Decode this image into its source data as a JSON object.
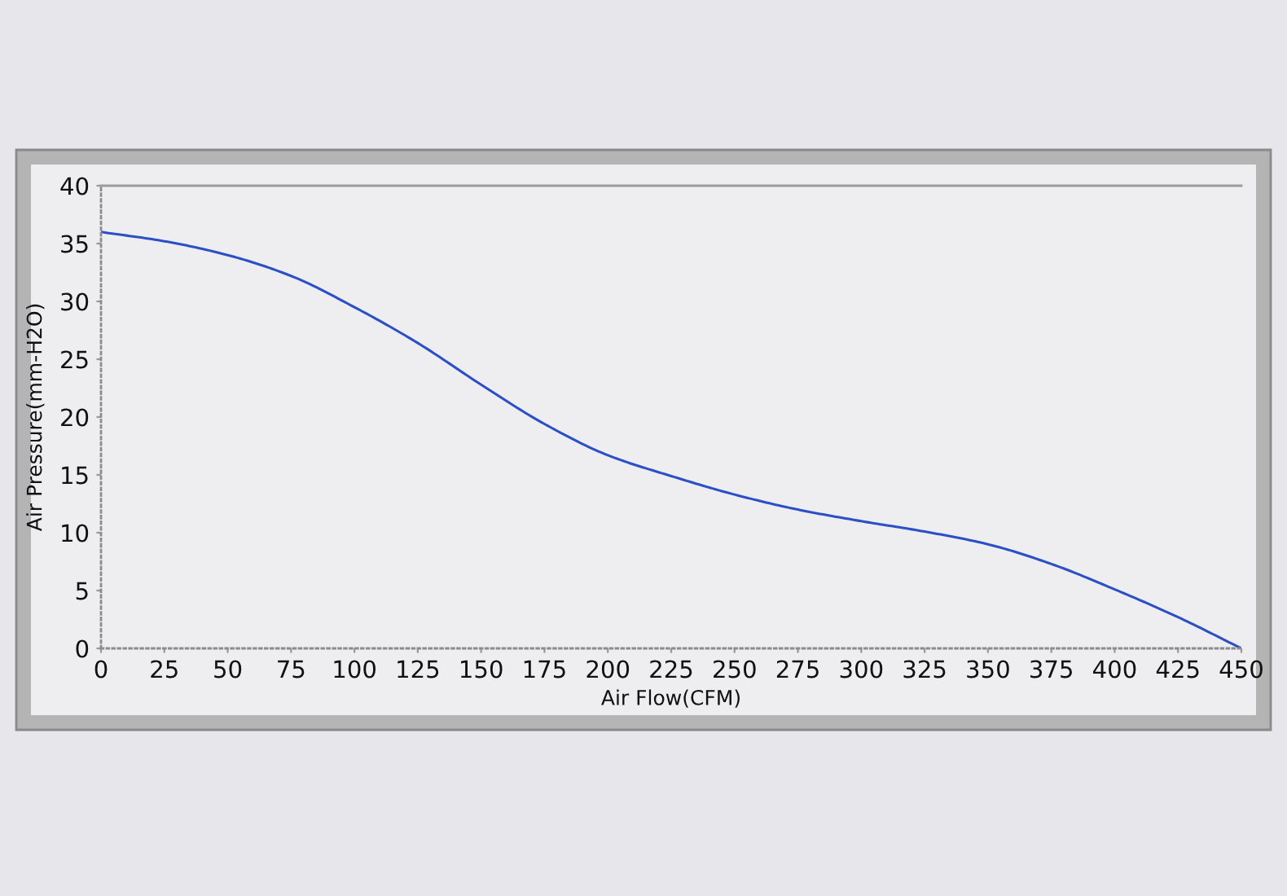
{
  "chart_data": {
    "type": "line",
    "xlabel": "Air Flow(CFM)",
    "ylabel": "Air Pressure(mm-H2O)",
    "x": [
      0,
      25,
      50,
      75,
      100,
      125,
      150,
      175,
      200,
      225,
      250,
      275,
      300,
      325,
      350,
      375,
      400,
      425,
      450
    ],
    "series": [
      {
        "color": "#2b4fc4",
        "values": [
          36.0,
          35.2,
          34.0,
          32.2,
          29.5,
          26.4,
          22.8,
          19.4,
          16.7,
          14.9,
          13.3,
          12.0,
          11.0,
          10.1,
          9.0,
          7.3,
          5.1,
          2.7,
          0
        ]
      }
    ],
    "xlim": [
      0,
      450
    ],
    "ylim": [
      0,
      40
    ],
    "xticks": [
      0,
      25,
      50,
      75,
      100,
      125,
      150,
      175,
      200,
      225,
      250,
      275,
      300,
      325,
      350,
      375,
      400,
      425,
      450
    ],
    "yticks": [
      0,
      5,
      10,
      15,
      20,
      25,
      30,
      35,
      40
    ],
    "line_style": "solid"
  }
}
